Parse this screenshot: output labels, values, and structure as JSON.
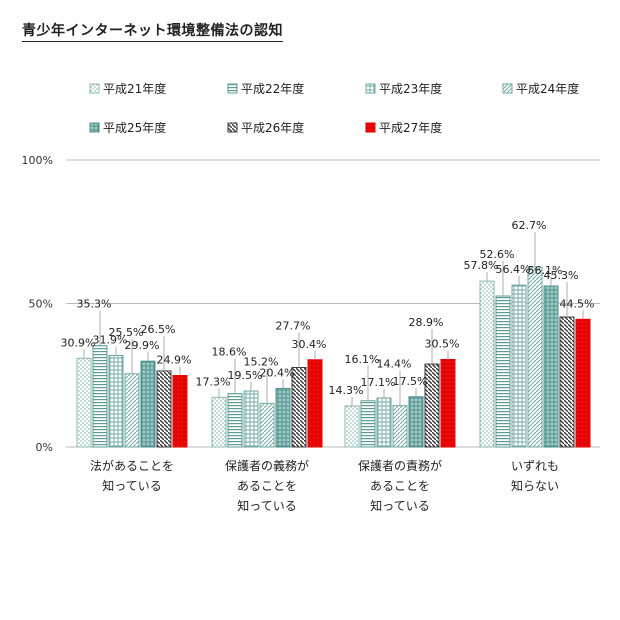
{
  "title": "青少年インターネット環境整備法の認知",
  "chart_data": {
    "type": "bar",
    "categories": [
      [
        "法があることを",
        "知っている"
      ],
      [
        "保護者の義務が",
        "あることを",
        "知っている"
      ],
      [
        "保護者の責務が",
        "あることを",
        "知っている"
      ],
      [
        "いずれも",
        "知らない"
      ]
    ],
    "series": [
      {
        "name": "平成21年度",
        "values": [
          30.9,
          17.3,
          14.3,
          57.8
        ],
        "labels": [
          "30.9%",
          "17.3%",
          "14.3%",
          "57.8%"
        ]
      },
      {
        "name": "平成22年度",
        "values": [
          35.3,
          18.6,
          16.1,
          52.6
        ],
        "labels": [
          "35.3%",
          "18.6%",
          "16.1%",
          "52.6%"
        ]
      },
      {
        "name": "平成23年度",
        "values": [
          31.9,
          19.5,
          17.1,
          56.4
        ],
        "labels": [
          "31.9%",
          "19.5%",
          "17.1%",
          "56.4%"
        ]
      },
      {
        "name": "平成24年度",
        "values": [
          25.5,
          15.2,
          14.4,
          62.7
        ],
        "labels": [
          "25.5%",
          "15.2%",
          "14.4%",
          "62.7%"
        ]
      },
      {
        "name": "平成25年度",
        "values": [
          29.9,
          20.4,
          17.5,
          56.1
        ],
        "labels": [
          "29.9%",
          "20.4%",
          "17.5%",
          "56.1%"
        ]
      },
      {
        "name": "平成26年度",
        "values": [
          26.5,
          27.7,
          28.9,
          45.3
        ],
        "labels": [
          "26.5%",
          "27.7%",
          "28.9%",
          "45.3%"
        ]
      },
      {
        "name": "平成27年度",
        "values": [
          24.9,
          30.4,
          30.5,
          44.5
        ],
        "labels": [
          "24.9%",
          "30.4%",
          "30.5%",
          "44.5%"
        ]
      }
    ],
    "ylim": [
      0,
      100
    ],
    "yticks": [
      "0%",
      "50%",
      "100%"
    ],
    "legend_position": "top",
    "grid": true,
    "colors": {
      "series_stroke": [
        "#8ab8b4",
        "#5e9a96",
        "#6fa9a4",
        "#6fa9a4",
        "#4f8f8b",
        "#3a3a3a",
        "#e60000"
      ],
      "accent": "#e60000",
      "axis": "#bbbbbb"
    }
  }
}
